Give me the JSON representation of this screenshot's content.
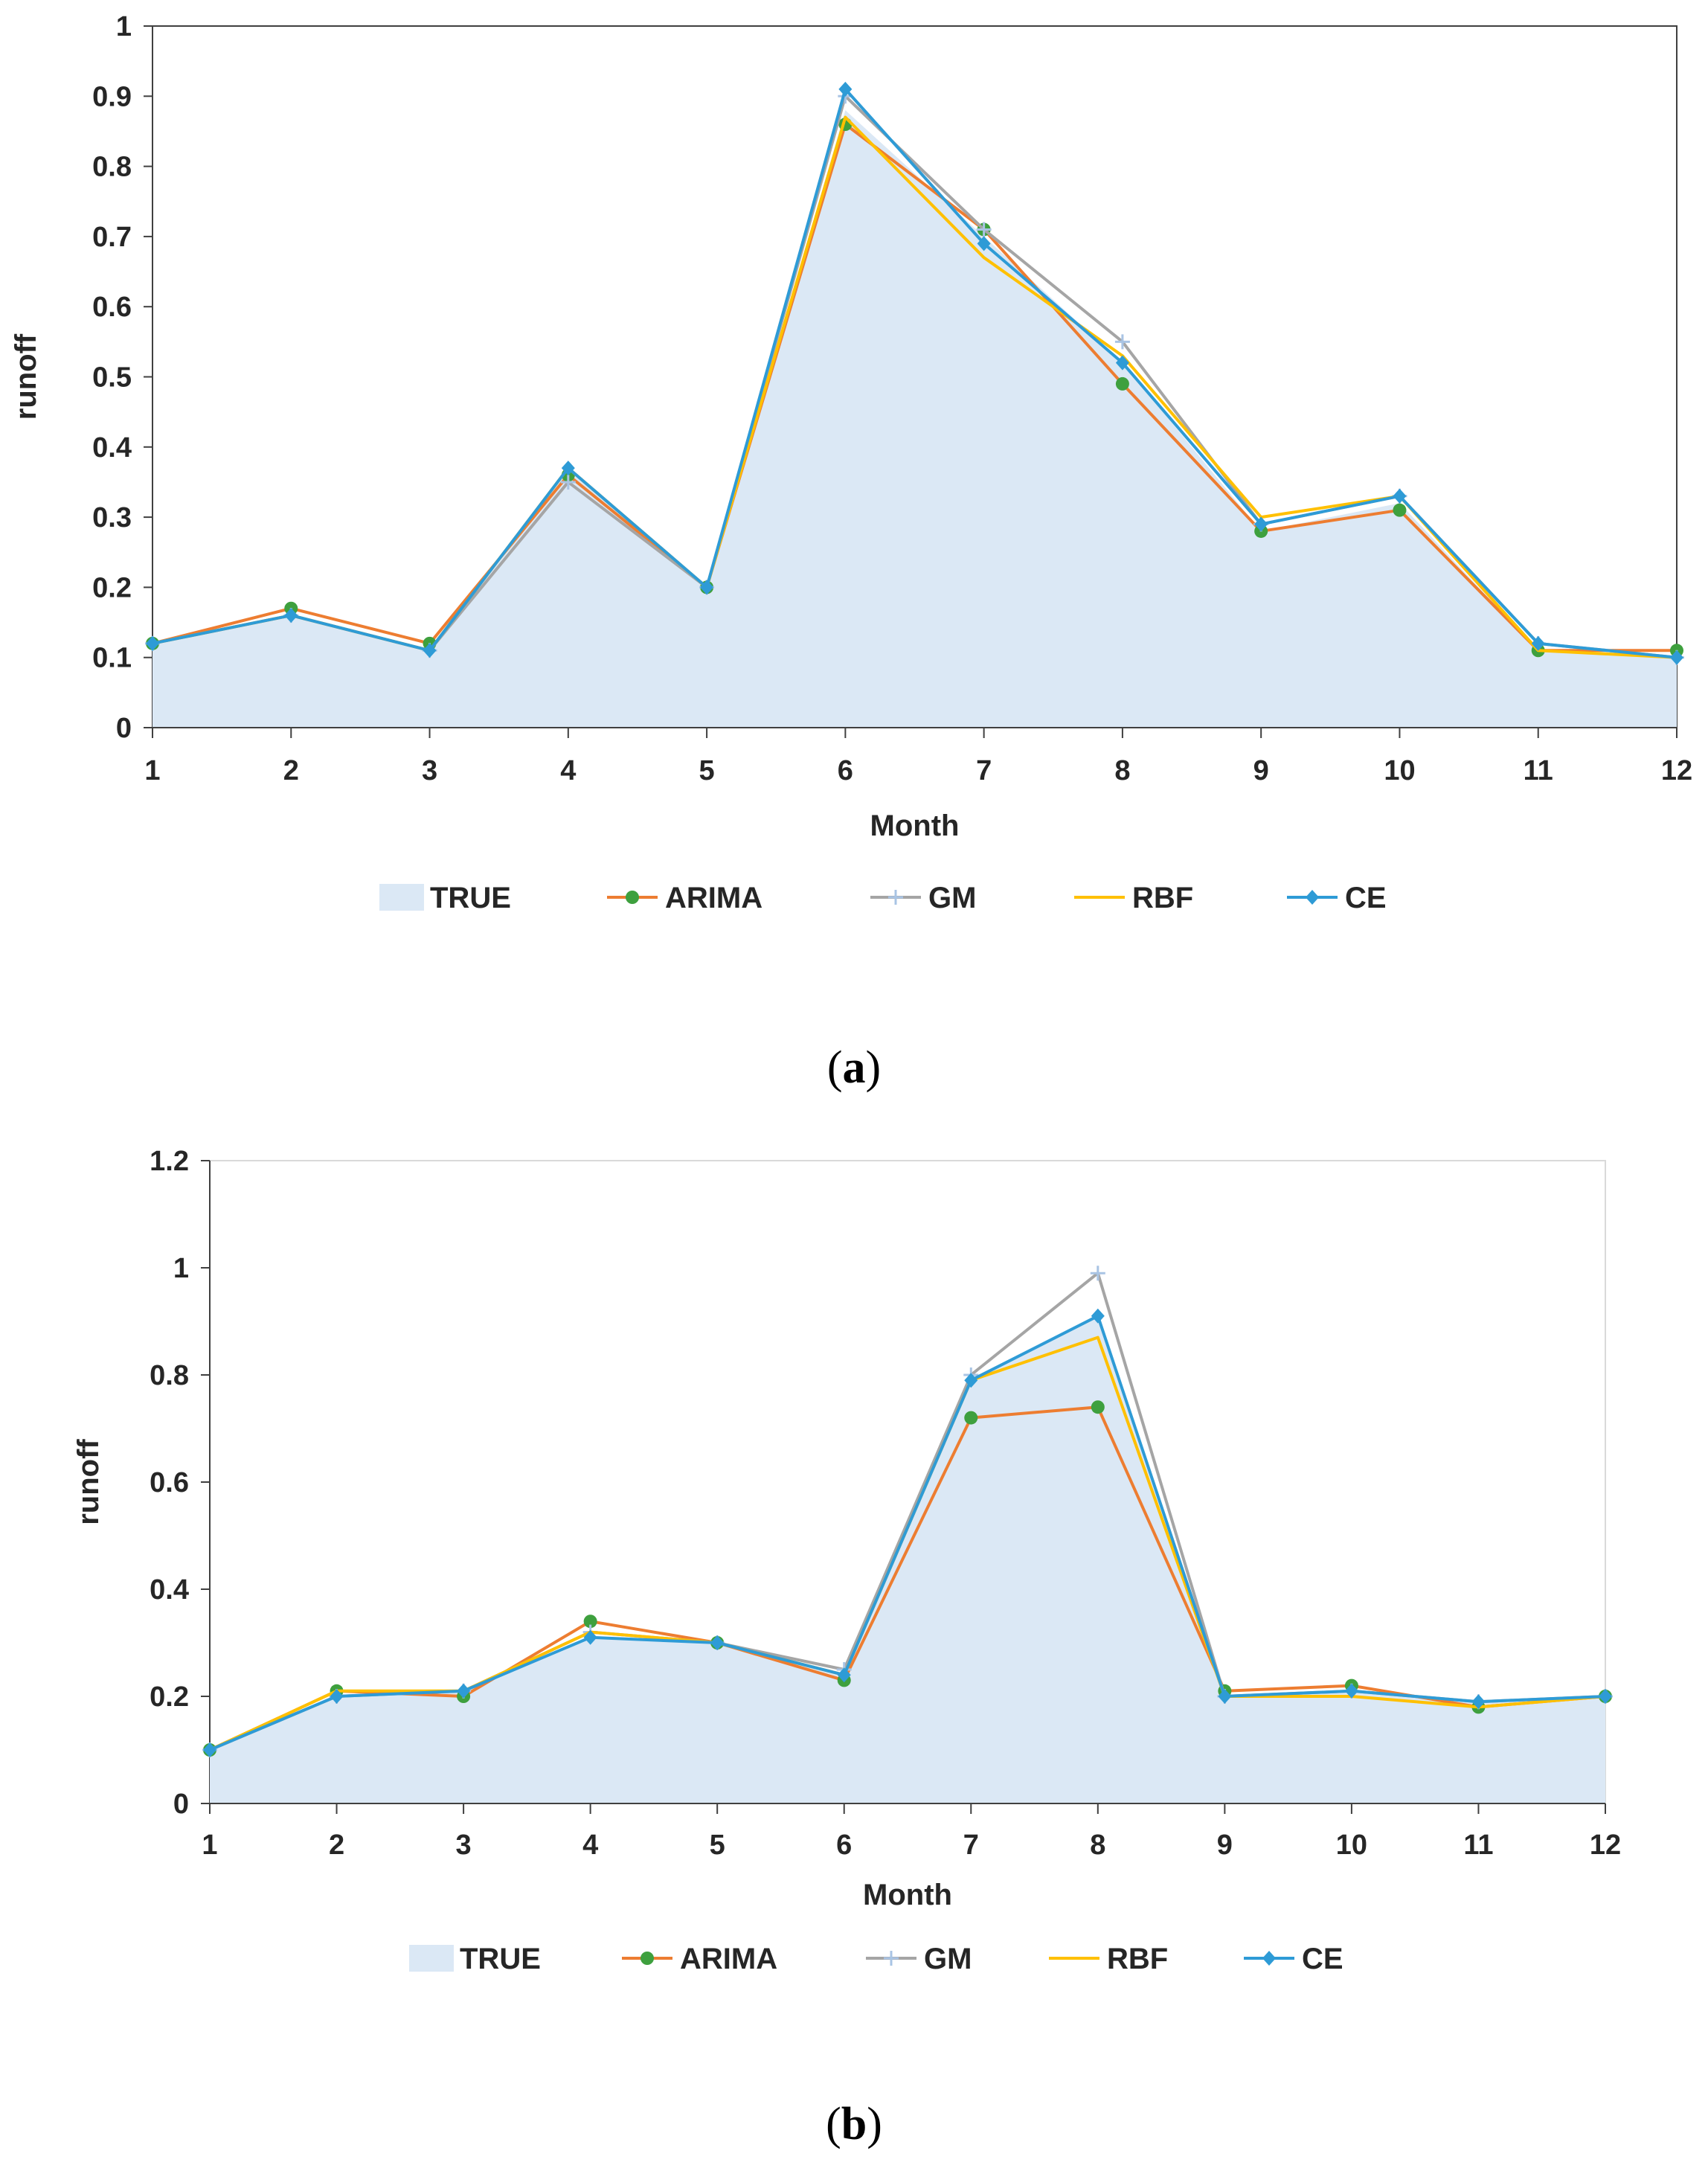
{
  "chart_data": [
    {
      "id": "a",
      "type": "area+line",
      "panel_label": "a",
      "xlabel": "Month",
      "ylabel": "runoff",
      "x": [
        1,
        2,
        3,
        4,
        5,
        6,
        7,
        8,
        9,
        10,
        11,
        12
      ],
      "ylim": [
        0,
        1
      ],
      "yticks": [
        0,
        0.1,
        0.2,
        0.3,
        0.4,
        0.5,
        0.6,
        0.7,
        0.8,
        0.9,
        1
      ],
      "ytick_labels": [
        "0",
        "0.1",
        "0.2",
        "0.3",
        "0.4",
        "0.5",
        "0.6",
        "0.7",
        "0.8",
        "0.9",
        "1"
      ],
      "legend_position": "bottom",
      "grid": false,
      "series": [
        {
          "name": "TRUE",
          "kind": "area",
          "color": "#dbe8f5",
          "values": [
            0.12,
            0.16,
            0.11,
            0.37,
            0.2,
            0.88,
            0.7,
            0.52,
            0.28,
            0.32,
            0.11,
            0.1
          ]
        },
        {
          "name": "ARIMA",
          "kind": "line",
          "color": "#ed7d31",
          "marker": "circle",
          "marker_color": "#3ea03e",
          "values": [
            0.12,
            0.17,
            0.12,
            0.36,
            0.2,
            0.86,
            0.71,
            0.49,
            0.28,
            0.31,
            0.11,
            0.11
          ]
        },
        {
          "name": "GM",
          "kind": "line",
          "color": "#a5a5a5",
          "marker": "plus",
          "marker_color": "#a9c4e4",
          "values": [
            0.12,
            0.16,
            0.11,
            0.35,
            0.2,
            0.9,
            0.71,
            0.55,
            0.29,
            0.33,
            0.12,
            0.1
          ]
        },
        {
          "name": "RBF",
          "kind": "line",
          "color": "#ffc000",
          "marker": "none",
          "values": [
            0.12,
            0.16,
            0.11,
            0.37,
            0.2,
            0.87,
            0.67,
            0.53,
            0.3,
            0.33,
            0.11,
            0.1
          ]
        },
        {
          "name": "CE",
          "kind": "line",
          "color": "#2e9bd6",
          "marker": "diamond",
          "marker_color": "#2e9bd6",
          "values": [
            0.12,
            0.16,
            0.11,
            0.37,
            0.2,
            0.91,
            0.69,
            0.52,
            0.29,
            0.33,
            0.12,
            0.1
          ]
        }
      ]
    },
    {
      "id": "b",
      "type": "area+line",
      "panel_label": "b",
      "xlabel": "Month",
      "ylabel": "runoff",
      "x": [
        1,
        2,
        3,
        4,
        5,
        6,
        7,
        8,
        9,
        10,
        11,
        12
      ],
      "ylim": [
        0,
        1.2
      ],
      "yticks": [
        0,
        0.2,
        0.4,
        0.6,
        0.8,
        1,
        1.2
      ],
      "ytick_labels": [
        "0",
        "0.2",
        "0.4",
        "0.6",
        "0.8",
        "1",
        "1.2"
      ],
      "legend_position": "bottom",
      "grid": false,
      "series": [
        {
          "name": "TRUE",
          "kind": "area",
          "color": "#dbe8f5",
          "values": [
            0.1,
            0.2,
            0.21,
            0.31,
            0.3,
            0.24,
            0.79,
            0.91,
            0.2,
            0.21,
            0.19,
            0.2
          ]
        },
        {
          "name": "ARIMA",
          "kind": "line",
          "color": "#ed7d31",
          "marker": "circle",
          "marker_color": "#3ea03e",
          "values": [
            0.1,
            0.21,
            0.2,
            0.34,
            0.3,
            0.23,
            0.72,
            0.74,
            0.21,
            0.22,
            0.18,
            0.2
          ]
        },
        {
          "name": "GM",
          "kind": "line",
          "color": "#a5a5a5",
          "marker": "plus",
          "marker_color": "#a9c4e4",
          "values": [
            0.1,
            0.2,
            0.21,
            0.32,
            0.3,
            0.25,
            0.8,
            0.99,
            0.2,
            0.21,
            0.19,
            0.2
          ]
        },
        {
          "name": "RBF",
          "kind": "line",
          "color": "#ffc000",
          "marker": "none",
          "values": [
            0.1,
            0.21,
            0.21,
            0.32,
            0.3,
            0.24,
            0.79,
            0.87,
            0.2,
            0.2,
            0.18,
            0.2
          ]
        },
        {
          "name": "CE",
          "kind": "line",
          "color": "#2e9bd6",
          "marker": "diamond",
          "marker_color": "#2e9bd6",
          "values": [
            0.1,
            0.2,
            0.21,
            0.31,
            0.3,
            0.24,
            0.79,
            0.91,
            0.2,
            0.21,
            0.19,
            0.2
          ]
        }
      ]
    }
  ]
}
